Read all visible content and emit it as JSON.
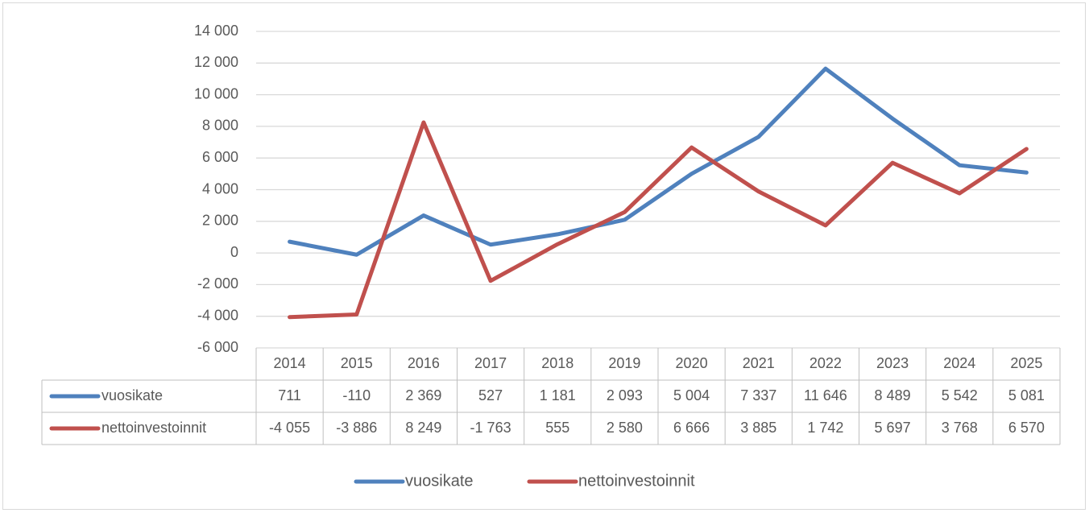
{
  "chart_data": {
    "type": "line",
    "categories": [
      "2014",
      "2015",
      "2016",
      "2017",
      "2018",
      "2019",
      "2020",
      "2021",
      "2022",
      "2023",
      "2024",
      "2025"
    ],
    "series": [
      {
        "name": "vuosikate",
        "color": "#4f81bd",
        "values": [
          711,
          -110,
          2369,
          527,
          1181,
          2093,
          5004,
          7337,
          11646,
          8489,
          5542,
          5081
        ],
        "value_labels": [
          "711",
          "-110",
          "2 369",
          "527",
          "1 181",
          "2 093",
          "5 004",
          "7 337",
          "11 646",
          "8 489",
          "5 542",
          "5 081"
        ]
      },
      {
        "name": "nettoinvestoinnit",
        "color": "#c0504d",
        "values": [
          -4055,
          -3886,
          8249,
          -1763,
          555,
          2580,
          6666,
          3885,
          1742,
          5697,
          3768,
          6570
        ],
        "value_labels": [
          "-4 055",
          "-3 886",
          "8 249",
          "-1 763",
          "555",
          "2 580",
          "6 666",
          "3 885",
          "1 742",
          "5 697",
          "3 768",
          "6 570"
        ]
      }
    ],
    "ylim": [
      -6000,
      14000
    ],
    "yticks": [
      {
        "value": -6000,
        "label": "-6 000"
      },
      {
        "value": -4000,
        "label": "-4 000"
      },
      {
        "value": -2000,
        "label": "-2 000"
      },
      0,
      {
        "value": 2000,
        "label": "2 000"
      },
      {
        "value": 4000,
        "label": "4 000"
      },
      {
        "value": 6000,
        "label": "6 000"
      },
      {
        "value": 8000,
        "label": "8 000"
      },
      {
        "value": 10000,
        "label": "10 000"
      },
      {
        "value": 12000,
        "label": "12 000"
      },
      {
        "value": 14000,
        "label": "14 000"
      }
    ],
    "grid": true,
    "legend": "bottom"
  }
}
